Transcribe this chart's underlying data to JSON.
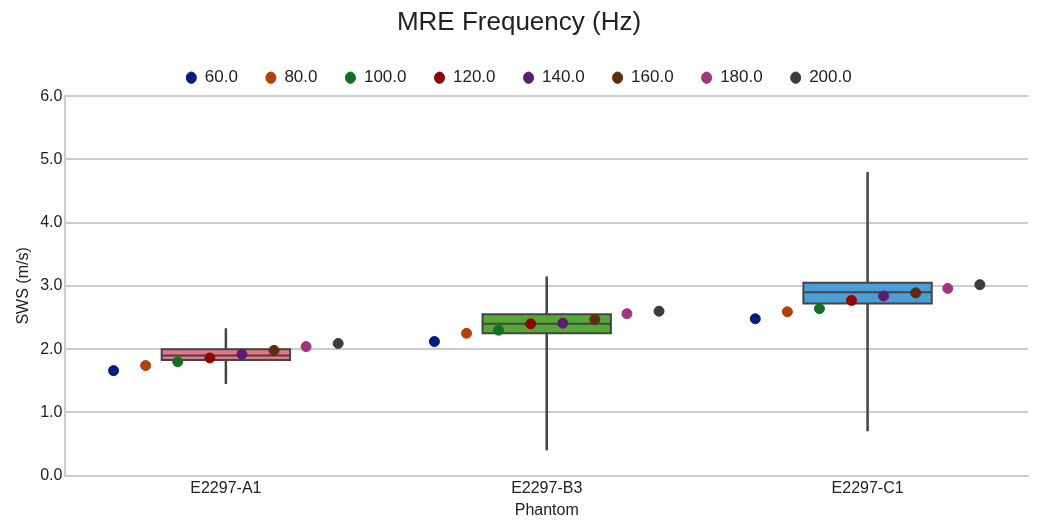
{
  "chart_data": {
    "type": "box",
    "xlabel": "Phantom",
    "ylabel": "SWS (m/s)",
    "legend_title": "MRE Frequency (Hz)",
    "legend": "top",
    "grid": "y",
    "marker": "circle",
    "categories": [
      "E2297-A1",
      "E2297-B3",
      "E2297-C1"
    ],
    "ylim": [
      0,
      6
    ],
    "yticks": [
      {
        "value": 0,
        "label": "0.0"
      },
      {
        "value": 1,
        "label": "1.0"
      },
      {
        "value": 2,
        "label": "2.0"
      },
      {
        "value": 3,
        "label": "3.0"
      },
      {
        "value": 4,
        "label": "4.0"
      },
      {
        "value": 5,
        "label": "5.0"
      },
      {
        "value": 6,
        "label": "6.0"
      }
    ],
    "series": [
      {
        "colors": [
          "#e8768a",
          "#55a834",
          "#4b9ed8"
        ],
        "boxes": [
          {
            "low": 1.45,
            "q1": 1.83,
            "median": 1.9,
            "q3": 2.0,
            "high": 2.33
          },
          {
            "low": 0.4,
            "q1": 2.25,
            "median": 2.4,
            "q3": 2.55,
            "high": 3.15
          },
          {
            "low": 0.7,
            "q1": 2.72,
            "median": 2.9,
            "q3": 3.05,
            "high": 4.8
          }
        ]
      },
      {
        "type": "scatter",
        "name": "60.0",
        "color": "#001c7f",
        "x": [
          "E2297-A1",
          "E2297-B3",
          "E2297-C1"
        ],
        "values": [
          1.66,
          2.12,
          2.48
        ]
      },
      {
        "type": "scatter",
        "name": "80.0",
        "color": "#b1400d",
        "x": [
          "E2297-A1",
          "E2297-B3",
          "E2297-C1"
        ],
        "values": [
          1.74,
          2.25,
          2.59
        ]
      },
      {
        "type": "scatter",
        "name": "100.0",
        "color": "#12711c",
        "x": [
          "E2297-A1",
          "E2297-B3",
          "E2297-C1"
        ],
        "values": [
          1.8,
          2.3,
          2.64
        ]
      },
      {
        "type": "scatter",
        "name": "120.0",
        "color": "#8c0800",
        "x": [
          "E2297-A1",
          "E2297-B3",
          "E2297-C1"
        ],
        "values": [
          1.86,
          2.4,
          2.77
        ]
      },
      {
        "type": "scatter",
        "name": "140.0",
        "color": "#591e71",
        "x": [
          "E2297-A1",
          "E2297-B3",
          "E2297-C1"
        ],
        "values": [
          1.92,
          2.41,
          2.84
        ]
      },
      {
        "type": "scatter",
        "name": "160.0",
        "color": "#592f0d",
        "x": [
          "E2297-A1",
          "E2297-B3",
          "E2297-C1"
        ],
        "values": [
          1.98,
          2.47,
          2.89
        ]
      },
      {
        "type": "scatter",
        "name": "180.0",
        "color": "#a23582",
        "x": [
          "E2297-A1",
          "E2297-B3",
          "E2297-C1"
        ],
        "values": [
          2.04,
          2.56,
          2.96
        ]
      },
      {
        "type": "scatter",
        "name": "200.0",
        "color": "#3c3c3c",
        "x": [
          "E2297-A1",
          "E2297-B3",
          "E2297-C1"
        ],
        "values": [
          2.09,
          2.6,
          3.02
        ]
      }
    ]
  }
}
